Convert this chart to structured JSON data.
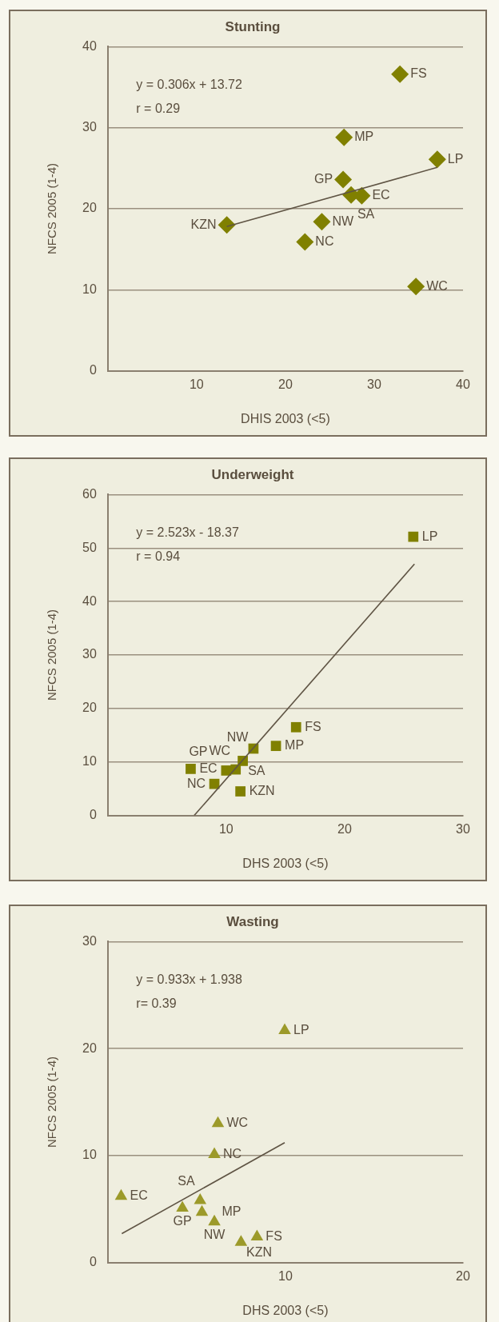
{
  "chart_data": [
    {
      "type": "scatter",
      "title": "Stunting",
      "xlabel": "DHIS 2003 (<5)",
      "ylabel": "NFCS 2005 (1-4)",
      "xlim": [
        0,
        40
      ],
      "xticks": [
        10,
        20,
        30,
        40
      ],
      "ylim": [
        0,
        40
      ],
      "yticks": [
        0,
        10,
        20,
        30,
        40
      ],
      "grid": "y",
      "marker": "diamond",
      "series": [
        {
          "color": "#808000",
          "x": [
            32.9,
            26.6,
            37.1,
            26.5,
            27.4,
            28.6,
            13.4,
            24.1,
            22.2,
            34.7
          ],
          "values": [
            36.6,
            28.8,
            26.1,
            23.6,
            21.7,
            21.6,
            18.0,
            18.4,
            15.9,
            10.4
          ]
        },
        {
          "type": "line",
          "color": "#5f5444",
          "marker": "none",
          "x": [
            13.4,
            37.1
          ],
          "values": [
            17.8,
            25.1
          ]
        }
      ],
      "annotations": [
        "y = 0.306x + 13.72",
        "r = 0.29",
        {
          "text": "FS",
          "x": 32.9,
          "y": 36.6
        },
        {
          "text": "MP",
          "x": 26.6,
          "y": 28.8
        },
        {
          "text": "LP",
          "x": 37.1,
          "y": 26.1
        },
        {
          "text": "GP",
          "x": 26.5,
          "y": 23.6
        },
        {
          "text": "SA",
          "x": 27.4,
          "y": 21.7
        },
        {
          "text": "EC",
          "x": 28.6,
          "y": 21.6
        },
        {
          "text": "KZN",
          "x": 13.4,
          "y": 18.0
        },
        {
          "text": "NW",
          "x": 24.1,
          "y": 18.4
        },
        {
          "text": "NC",
          "x": 22.2,
          "y": 15.9
        },
        {
          "text": "WC",
          "x": 34.7,
          "y": 10.4
        }
      ]
    },
    {
      "type": "scatter",
      "title": "Underweight",
      "xlabel": "DHS 2003 (<5)",
      "ylabel": "NFCS 2005 (1-4)",
      "xlim": [
        0,
        30
      ],
      "xticks": [
        10,
        20,
        30
      ],
      "ylim": [
        0,
        60
      ],
      "yticks": [
        0,
        10,
        20,
        30,
        40,
        50,
        60
      ],
      "grid": "y",
      "marker": "square",
      "series": [
        {
          "color": "#808000",
          "x": [
            25.8,
            15.9,
            14.2,
            12.3,
            11.4,
            10.8,
            10.0,
            7.0,
            9.0,
            11.2
          ],
          "values": [
            52.1,
            16.5,
            13.0,
            12.5,
            10.2,
            8.6,
            8.4,
            8.7,
            5.9,
            4.5
          ]
        },
        {
          "type": "line",
          "color": "#5f5444",
          "marker": "none",
          "x": [
            7.3,
            25.9
          ],
          "values": [
            0,
            47
          ]
        }
      ],
      "annotations": [
        "y = 2.523x - 18.37",
        "r = 0.94",
        {
          "text": "LP",
          "x": 25.8,
          "y": 52.1
        },
        {
          "text": "FS",
          "x": 15.9,
          "y": 16.5
        },
        {
          "text": "MP",
          "x": 14.2,
          "y": 13.0
        },
        {
          "text": "NW",
          "x": 12.3,
          "y": 12.5
        },
        {
          "text": "SA",
          "x": 11.4,
          "y": 10.2
        },
        {
          "text": "WC",
          "x": 10.8,
          "y": 8.6
        },
        {
          "text": "GP",
          "x": 10.0,
          "y": 8.4
        },
        {
          "text": "EC",
          "x": 7.0,
          "y": 8.7
        },
        {
          "text": "NC",
          "x": 9.0,
          "y": 5.9
        },
        {
          "text": "KZN",
          "x": 11.2,
          "y": 4.5
        }
      ]
    },
    {
      "type": "scatter",
      "title": "Wasting",
      "xlabel": "DHS 2003 (<5)",
      "ylabel": "NFCS 2005 (1-4)",
      "xlim": [
        0,
        20
      ],
      "xticks": [
        10,
        20
      ],
      "ylim": [
        0,
        30
      ],
      "yticks": [
        0,
        10,
        20,
        30
      ],
      "grid": "y",
      "marker": "triangle",
      "series": [
        {
          "color": "#9c9a2a",
          "x": [
            9.96,
            6.2,
            6.0,
            0.75,
            5.2,
            4.2,
            5.3,
            6.0,
            8.4,
            7.5
          ],
          "values": [
            21.7,
            13.0,
            10.1,
            6.2,
            5.8,
            5.1,
            4.7,
            3.8,
            2.4,
            1.9
          ]
        },
        {
          "type": "line",
          "color": "#5f5444",
          "marker": "none",
          "x": [
            0.79,
            9.96
          ],
          "values": [
            2.7,
            11.2
          ]
        }
      ],
      "annotations": [
        "y = 0.933x + 1.938",
        "r= 0.39",
        {
          "text": "LP",
          "x": 9.96,
          "y": 21.7
        },
        {
          "text": "WC",
          "x": 6.2,
          "y": 13.0
        },
        {
          "text": "NC",
          "x": 6.0,
          "y": 10.1
        },
        {
          "text": "EC",
          "x": 0.75,
          "y": 6.2
        },
        {
          "text": "SA",
          "x": 5.2,
          "y": 5.8
        },
        {
          "text": "GP",
          "x": 4.2,
          "y": 5.1
        },
        {
          "text": "MP",
          "x": 5.3,
          "y": 4.7
        },
        {
          "text": "NW",
          "x": 6.0,
          "y": 3.8
        },
        {
          "text": "FS",
          "x": 8.4,
          "y": 2.4
        },
        {
          "text": "KZN",
          "x": 7.5,
          "y": 1.9
        }
      ]
    }
  ]
}
